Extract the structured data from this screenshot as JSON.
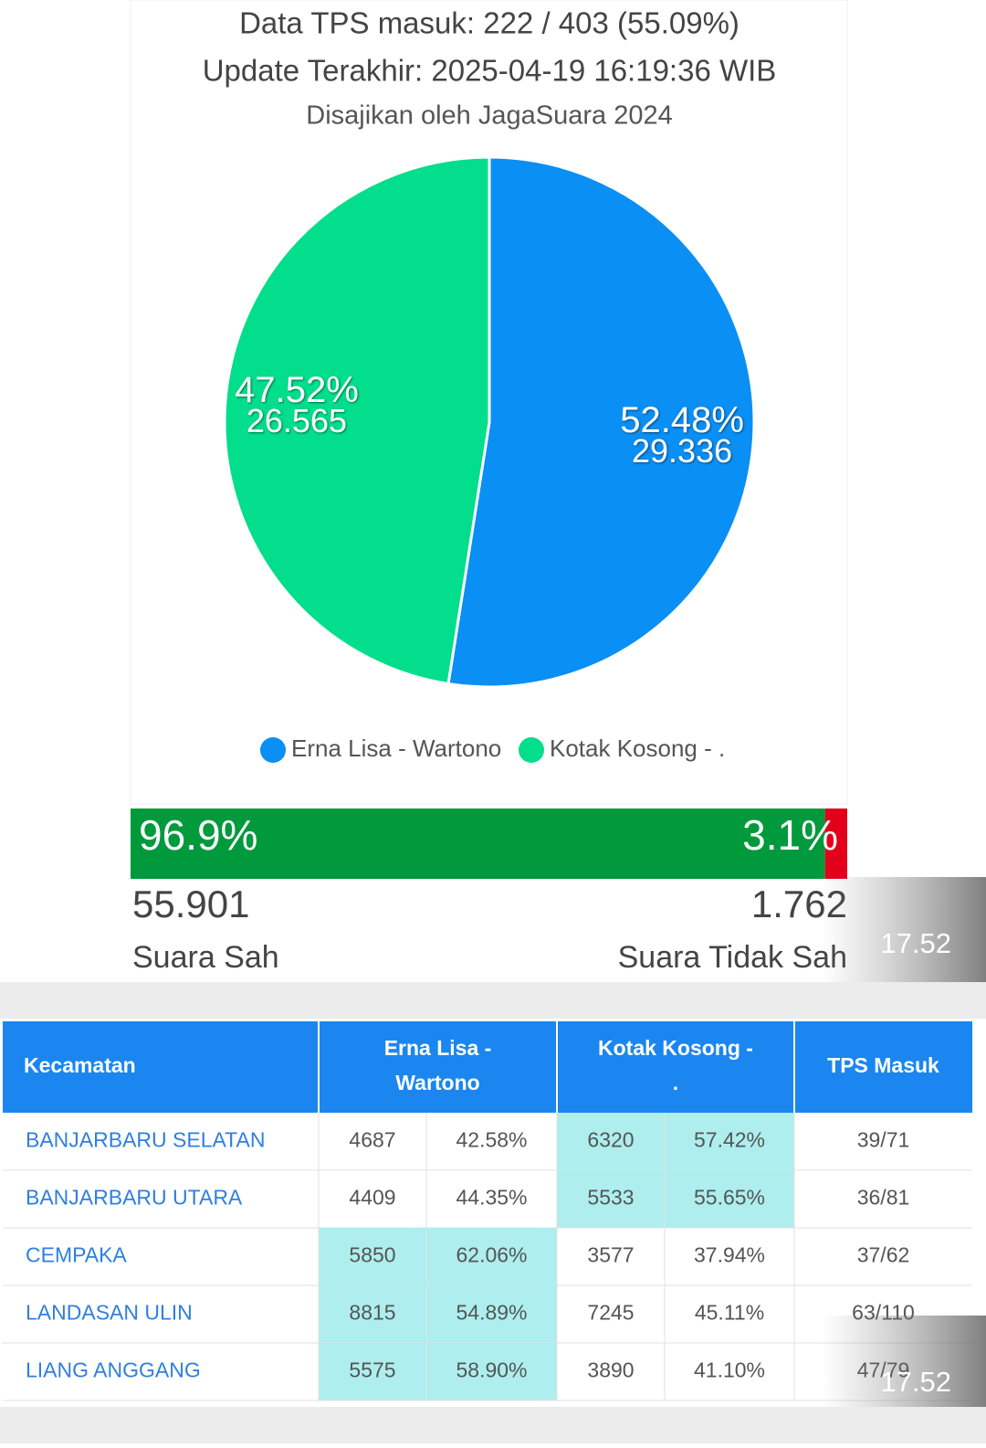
{
  "header": {
    "line1": "Data TPS masuk: 222 / 403 (55.09%)",
    "line2": "Update Terakhir: 2025-04-19 16:19:36 WIB",
    "line3": "Disajikan oleh JagaSuara 2024"
  },
  "chart_data": {
    "type": "pie",
    "categories": [
      "Erna Lisa - Wartono",
      "Kotak Kosong - ."
    ],
    "values": [
      52.48,
      47.52
    ],
    "value_labels": [
      "52.48%",
      "47.52%"
    ],
    "vote_labels": [
      "29.336",
      "26.565"
    ],
    "colors": [
      "#0a8ff5",
      "#02de8b"
    ]
  },
  "validity": {
    "labels": [
      "Suara Sah",
      "Suara Tidak Sah"
    ],
    "values": [
      96.9,
      3.1
    ],
    "value_labels": [
      "96.9%",
      "3.1%"
    ],
    "vote_labels": [
      "55.901",
      "1.762"
    ],
    "colors": [
      "#009a3c",
      "#e3001b"
    ]
  },
  "overlay_time": "17.52",
  "table": {
    "headers": [
      "Kecamatan",
      "Erna Lisa - Wartono",
      "Kotak Kosong - .",
      "TPS Masuk"
    ],
    "rows": [
      [
        "BANJARBARU SELATAN",
        "4687",
        "42.58%",
        "6320",
        "57.42%",
        "39/71"
      ],
      [
        "BANJARBARU UTARA",
        "4409",
        "44.35%",
        "5533",
        "55.65%",
        "36/81"
      ],
      [
        "CEMPAKA",
        "5850",
        "62.06%",
        "3577",
        "37.94%",
        "37/62"
      ],
      [
        "LANDASAN ULIN",
        "8815",
        "54.89%",
        "7245",
        "45.11%",
        "63/110"
      ],
      [
        "LIANG ANGGANG",
        "5575",
        "58.90%",
        "3890",
        "41.10%",
        "47/79"
      ]
    ]
  }
}
